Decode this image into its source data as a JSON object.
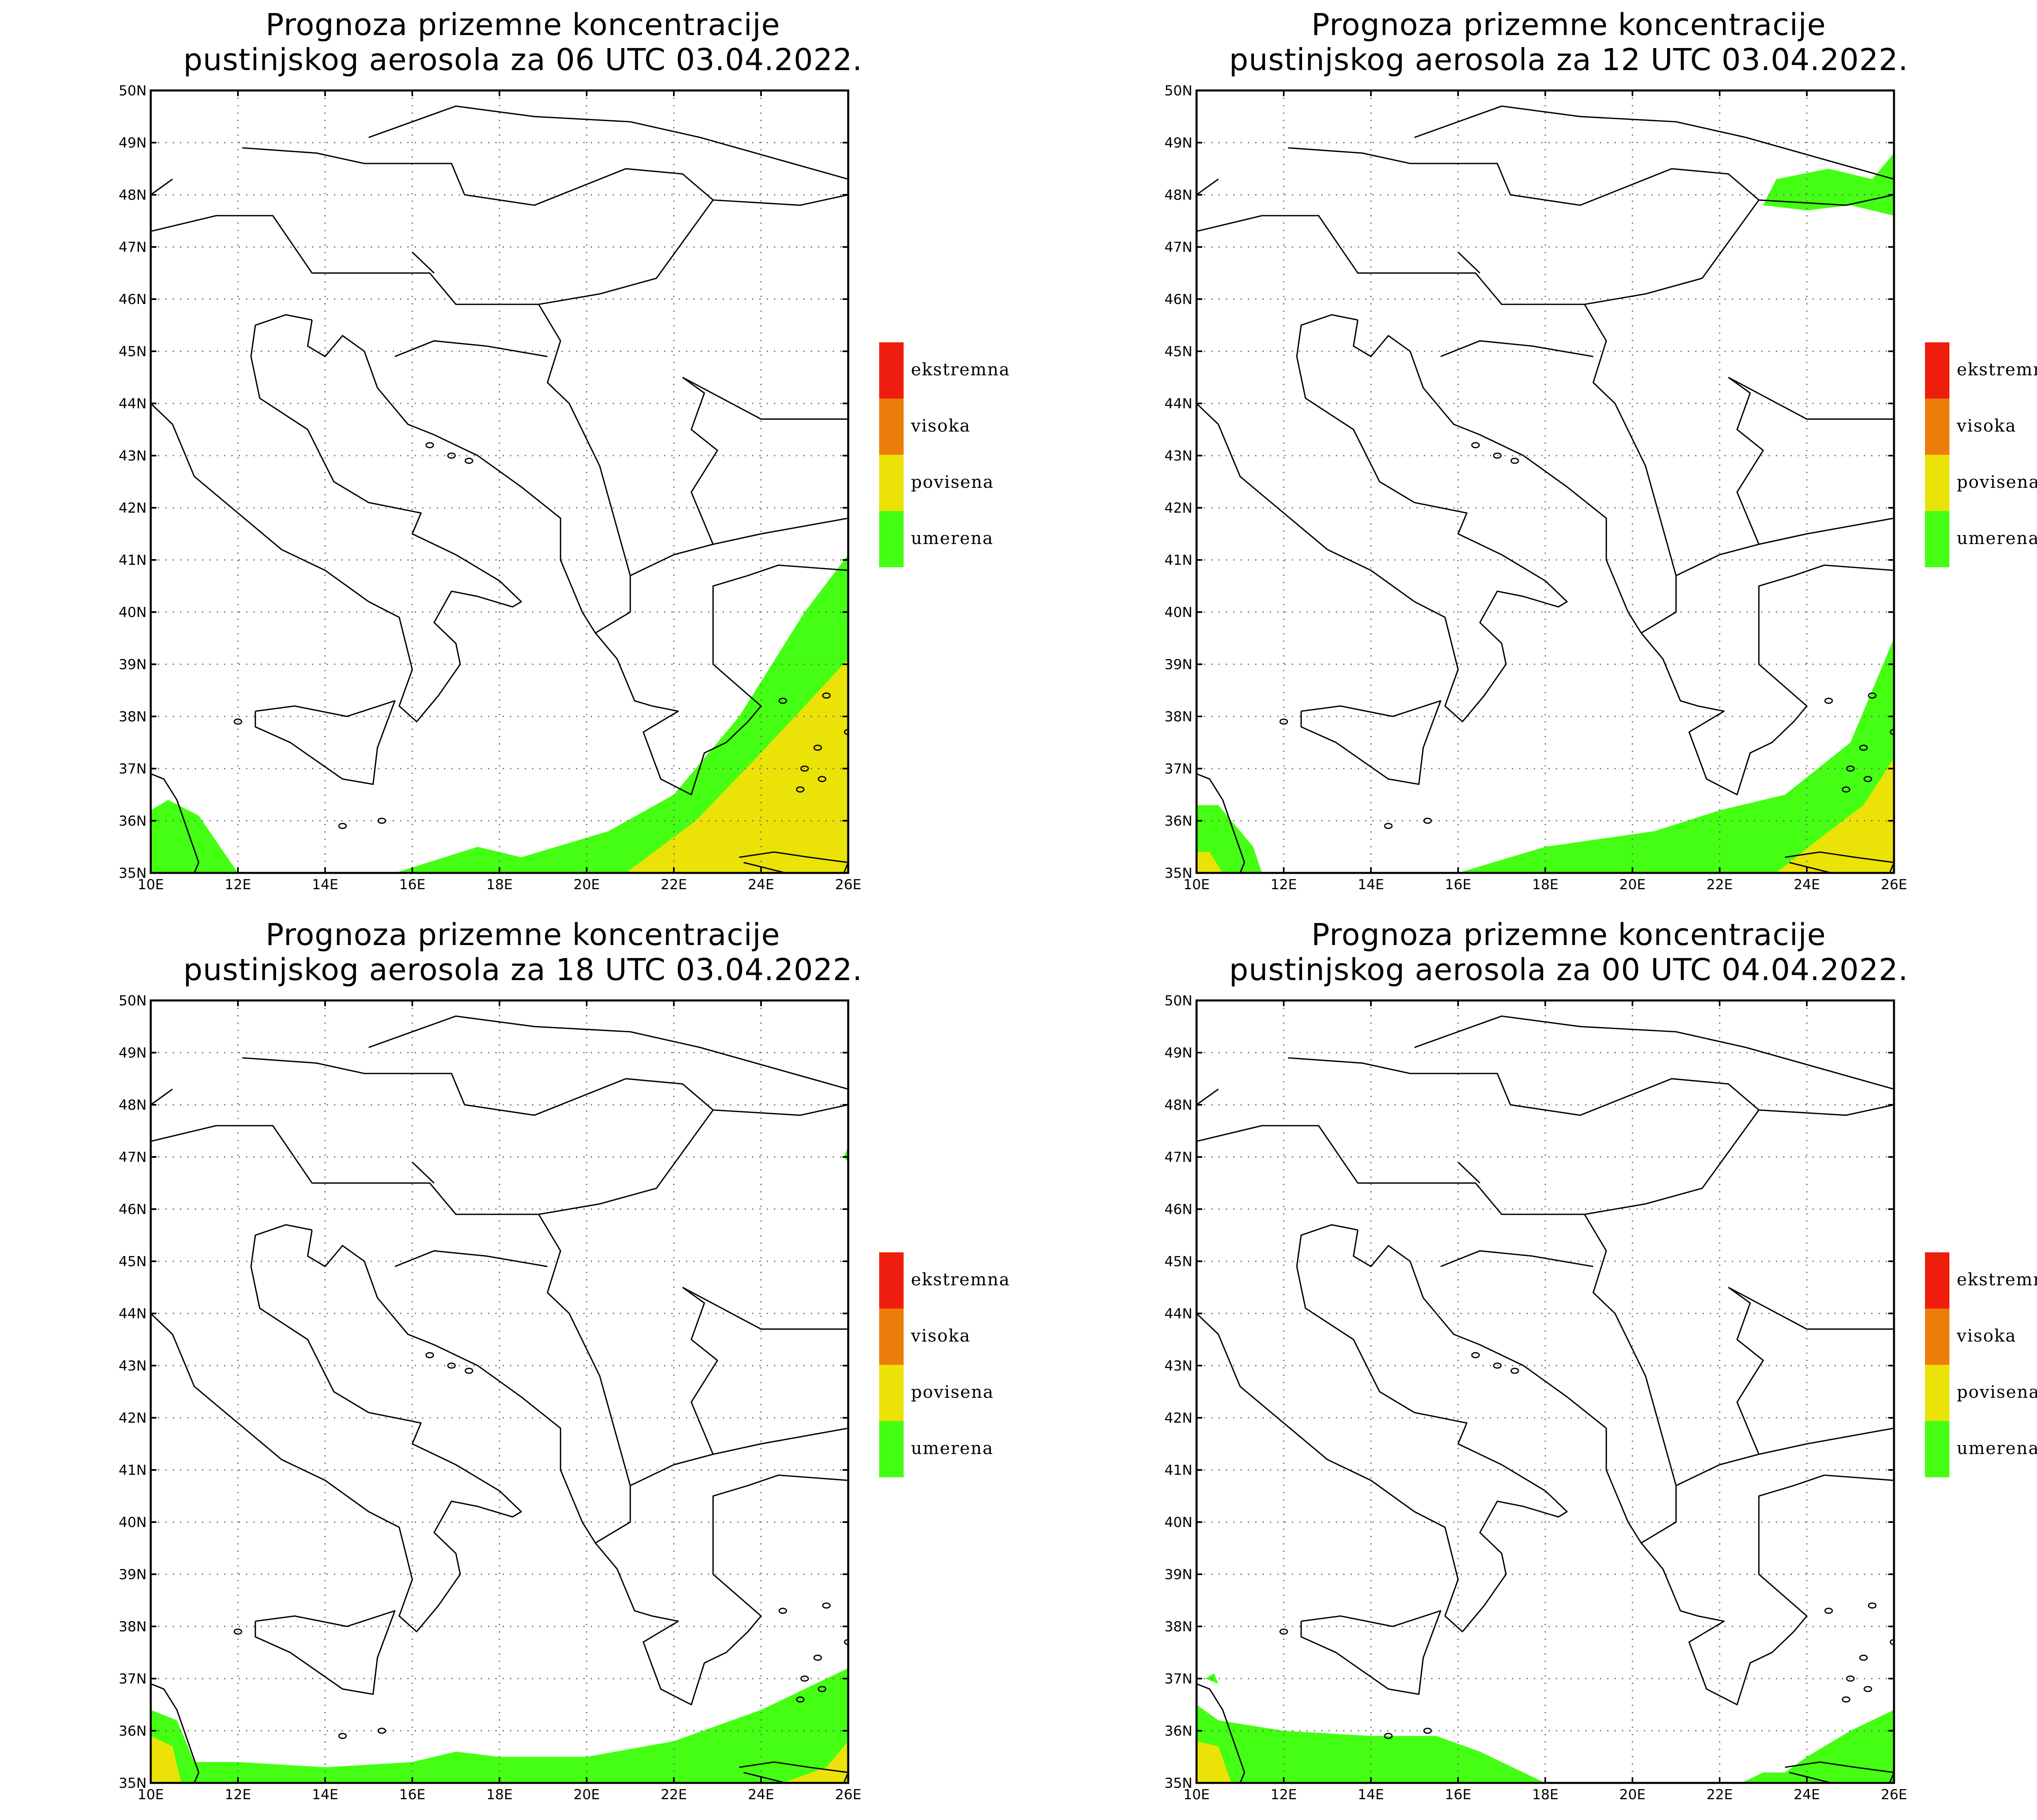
{
  "colors": {
    "umerena": "#44ff13",
    "povisena": "#ebe208",
    "visoka": "#ec7d0b",
    "ekstremna": "#ef1d0d",
    "border": "#000000",
    "grid": "#666666"
  },
  "map": {
    "lon_ticks": [
      "10E",
      "12E",
      "14E",
      "16E",
      "18E",
      "20E",
      "22E",
      "24E",
      "26E"
    ],
    "lat_ticks": [
      "50N",
      "49N",
      "48N",
      "47N",
      "46N",
      "45N",
      "44N",
      "43N",
      "42N",
      "41N",
      "40N",
      "39N",
      "38N",
      "37N",
      "36N",
      "35N"
    ],
    "lon_range": [
      10,
      26
    ],
    "lat_range": [
      35,
      50
    ],
    "grid": "dotted"
  },
  "legend": {
    "items": [
      {
        "label": "ekstremna",
        "color": "#ef1d0d"
      },
      {
        "label": "visoka",
        "color": "#ec7d0b"
      },
      {
        "label": "povisena",
        "color": "#ebe208"
      },
      {
        "label": "umerena",
        "color": "#44ff13"
      }
    ]
  },
  "panels": [
    {
      "title_line1": "Prognoza prizemne koncentracije",
      "title_line2": "pustinjskog aerosola za 06 UTC 03.04.2022.",
      "umerena": [
        [
          [
            10,
            35
          ],
          [
            10,
            36.2
          ],
          [
            10.4,
            36.4
          ],
          [
            11.1,
            36.1
          ],
          [
            12,
            35
          ]
        ],
        [
          [
            15.6,
            35
          ],
          [
            17.5,
            35.5
          ],
          [
            18,
            35.4
          ],
          [
            18.5,
            35.3
          ],
          [
            20.5,
            35.8
          ],
          [
            22,
            36.5
          ],
          [
            23.5,
            38
          ],
          [
            25,
            40
          ],
          [
            26,
            41.1
          ],
          [
            26,
            35
          ]
        ]
      ],
      "povisena": [
        [
          [
            20.9,
            35
          ],
          [
            22.5,
            36
          ],
          [
            24,
            37.3
          ],
          [
            26,
            39.1
          ],
          [
            26,
            35
          ]
        ]
      ]
    },
    {
      "title_line1": "Prognoza prizemne koncentracije",
      "title_line2": "pustinjskog aerosola za 12 UTC 03.04.2022.",
      "umerena": [
        [
          [
            10,
            35
          ],
          [
            10,
            36.3
          ],
          [
            10.5,
            36.3
          ],
          [
            11.3,
            35.5
          ],
          [
            11.5,
            35
          ]
        ],
        [
          [
            16,
            35
          ],
          [
            18,
            35.5
          ],
          [
            20.5,
            35.8
          ],
          [
            22,
            36.2
          ],
          [
            23.5,
            36.5
          ],
          [
            25,
            37.5
          ],
          [
            26,
            39.5
          ],
          [
            26,
            35
          ]
        ],
        [
          [
            23,
            47.8
          ],
          [
            23.3,
            48.3
          ],
          [
            24.5,
            48.5
          ],
          [
            25.5,
            48.3
          ],
          [
            26,
            48.8
          ],
          [
            26,
            47.6
          ],
          [
            25,
            47.8
          ],
          [
            24,
            47.7
          ]
        ]
      ],
      "povisena": [
        [
          [
            10,
            35
          ],
          [
            10,
            35.4
          ],
          [
            10.3,
            35.4
          ],
          [
            10.6,
            35
          ]
        ],
        [
          [
            23.3,
            35
          ],
          [
            24.2,
            35.6
          ],
          [
            25.3,
            36.3
          ],
          [
            26,
            37.2
          ],
          [
            26,
            35
          ]
        ]
      ]
    },
    {
      "title_line1": "Prognoza prizemne koncentracije",
      "title_line2": "pustinjskog aerosola za 18 UTC 03.04.2022.",
      "umerena": [
        [
          [
            10,
            35
          ],
          [
            10,
            36.4
          ],
          [
            10.6,
            36.2
          ],
          [
            11,
            35.4
          ],
          [
            12,
            35.4
          ],
          [
            14,
            35.3
          ],
          [
            16,
            35.4
          ],
          [
            17,
            35.6
          ],
          [
            18,
            35.5
          ],
          [
            20,
            35.5
          ],
          [
            22,
            35.8
          ],
          [
            24,
            36.4
          ],
          [
            26,
            37.2
          ],
          [
            26,
            35
          ]
        ],
        [
          [
            25.9,
            47
          ],
          [
            26,
            47.2
          ],
          [
            26,
            46.9
          ]
        ]
      ],
      "povisena": [
        [
          [
            10,
            35
          ],
          [
            10,
            35.9
          ],
          [
            10.5,
            35.7
          ],
          [
            10.7,
            35
          ]
        ],
        [
          [
            24.5,
            35
          ],
          [
            25.5,
            35.3
          ],
          [
            26,
            35.8
          ],
          [
            26,
            35
          ]
        ]
      ]
    },
    {
      "title_line1": "Prognoza prizemne koncentracije",
      "title_line2": "pustinjskog aerosola za 00 UTC 04.04.2022.",
      "umerena": [
        [
          [
            10,
            35
          ],
          [
            10,
            36.5
          ],
          [
            10.5,
            36.2
          ],
          [
            12,
            36
          ],
          [
            14,
            35.9
          ],
          [
            15.5,
            35.9
          ],
          [
            16.5,
            35.6
          ],
          [
            18,
            35
          ],
          [
            18,
            35
          ]
        ],
        [
          [
            22.5,
            35
          ],
          [
            23,
            35.2
          ],
          [
            23.5,
            35.2
          ],
          [
            24,
            35.5
          ],
          [
            25,
            36
          ],
          [
            26,
            36.4
          ],
          [
            26,
            35
          ]
        ],
        [
          [
            10.2,
            37
          ],
          [
            10.4,
            37.1
          ],
          [
            10.5,
            36.9
          ]
        ]
      ],
      "povisena": [
        [
          [
            10,
            35
          ],
          [
            10,
            35.8
          ],
          [
            10.5,
            35.7
          ],
          [
            10.8,
            35
          ]
        ]
      ]
    }
  ]
}
